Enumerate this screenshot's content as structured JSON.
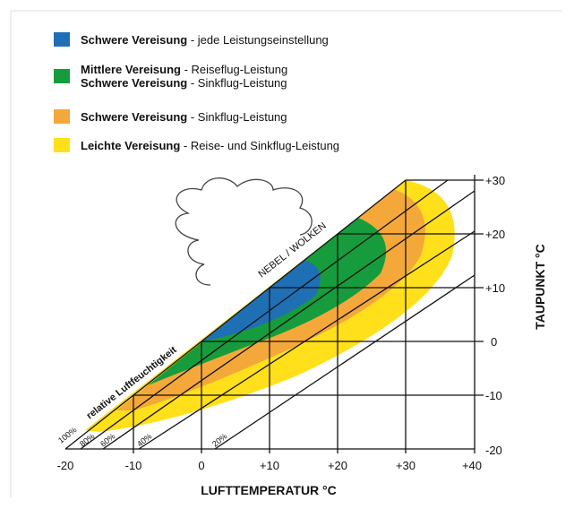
{
  "legend": [
    {
      "bold": "Schwere Vereisung",
      "text": " - jede Leistungseinstellung"
    },
    {
      "bold": "Mittlere Vereisung",
      "text": " - Reiseflug-Leistung"
    },
    {
      "bold": "Schwere Vereisung",
      "text": " - Sinkflug-Leistung"
    },
    {
      "bold": "Schwere Vereisung",
      "text": " - Sinkflug-Leistung"
    },
    {
      "bold": "Leichte Vereisung",
      "text": " - Reise- und Sinkflug-Leistung"
    }
  ],
  "x_axis": {
    "title": "LUFTTEMPERATUR °C",
    "ticks": [
      "-20",
      "-10",
      "0",
      "+10",
      "+20",
      "+30",
      "+40"
    ]
  },
  "y_axis": {
    "title": "TAUPUNKT °C",
    "ticks": [
      "+30",
      "+20",
      "+10",
      "0",
      "-10",
      "-20"
    ]
  },
  "annotations": {
    "cloud": "NEBEL / WOLKEN",
    "humidity": "relative Luftfeuchtigkeit",
    "percent": [
      "100%",
      "80%",
      "60%",
      "40%",
      "20%"
    ]
  }
}
